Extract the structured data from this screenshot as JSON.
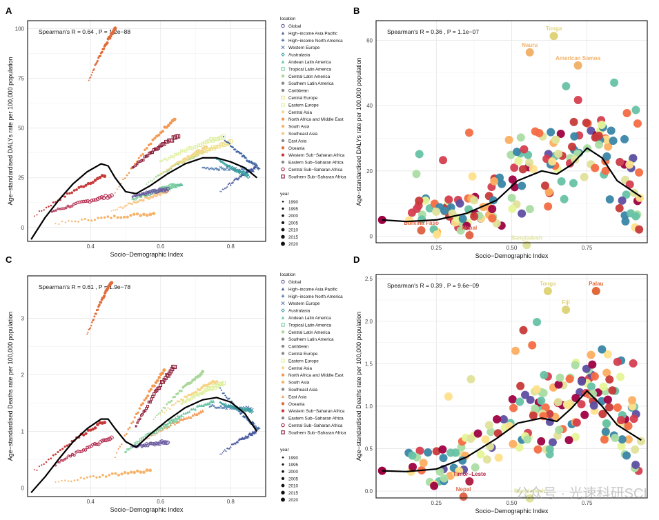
{
  "figure": {
    "watermark": "公众号 · 光速科研SCI"
  },
  "chart_data": [
    {
      "panel": "A",
      "type": "scatter",
      "annotation": "Spearman's R = 0.64 , P = 1.2e−88",
      "xlabel": "Socio−Demographic Index",
      "ylabel": "Age−standardised DALYs rate per 100,000 population",
      "xlim": [
        0.22,
        0.9
      ],
      "ylim": [
        -7,
        104
      ],
      "xticks": [
        0.4,
        0.6,
        0.8
      ],
      "xtick_labels": [
        "0.4",
        "0.6",
        "0.8"
      ],
      "yticks": [
        0,
        25,
        50,
        75,
        100
      ],
      "ytick_labels": [
        "0",
        "25",
        "50",
        "75",
        "100"
      ],
      "grid": true,
      "legend_location_title": "location",
      "legend_year_title": "year",
      "locations": [
        "Global",
        "High−income Asia Pacific",
        "High−income North America",
        "Western Europe",
        "Australasia",
        "Andean Latin America",
        "Tropical Latin America",
        "Central Latin America",
        "Southern Latin America",
        "Caribbean",
        "Central Europe",
        "Eastern Europe",
        "Central Asia",
        "North Africa and Middle East",
        "South Asia",
        "Southeast Asia",
        "East Asia",
        "Oceania",
        "Western Sub−Saharan Africa",
        "Eastern Sub−Saharan Africa",
        "Central Sub−Saharan Africa",
        "Southern Sub−Saharan Africa"
      ],
      "years": [
        "1990",
        "1995",
        "2000",
        "2005",
        "2010",
        "2015",
        "2020"
      ],
      "series": [
        {
          "name": "Oceania",
          "color": "#e26a3a",
          "shape": "dot",
          "x0": 0.395,
          "y0": 74,
          "x1": 0.47,
          "y1": 100
        },
        {
          "name": "Western Sub−Saharan Africa",
          "color": "#c83a3a",
          "shape": "dot",
          "x0": 0.24,
          "y0": 6,
          "x1": 0.44,
          "y1": 26
        },
        {
          "name": "Central Sub−Saharan Africa",
          "color": "#b0264a",
          "shape": "ring",
          "x0": 0.29,
          "y0": 8,
          "x1": 0.46,
          "y1": 16
        },
        {
          "name": "South Asia",
          "color": "#f6b36a",
          "shape": "dot",
          "x0": 0.3,
          "y0": 2,
          "x1": 0.58,
          "y1": 7
        },
        {
          "name": "North Africa and Middle East",
          "color": "#f29a52",
          "shape": "dot",
          "x0": 0.47,
          "y0": 18,
          "x1": 0.64,
          "y1": 55
        },
        {
          "name": "Southern Sub−Saharan Africa",
          "color": "#8b1a36",
          "shape": "square",
          "x0": 0.52,
          "y0": 30,
          "x1": 0.65,
          "y1": 46
        },
        {
          "name": "Southeast Asia",
          "color": "#f9c88a",
          "shape": "dot",
          "x0": 0.46,
          "y0": 8,
          "x1": 0.62,
          "y1": 18
        },
        {
          "name": "Andean Latin America",
          "color": "#66c2a5",
          "shape": "triangle",
          "x0": 0.54,
          "y0": 16,
          "x1": 0.66,
          "y1": 22
        },
        {
          "name": "Tropical Latin America",
          "color": "#7fcfa0",
          "shape": "square",
          "x0": 0.52,
          "y0": 14,
          "x1": 0.64,
          "y1": 21
        },
        {
          "name": "Central Latin America",
          "color": "#a8d89a",
          "shape": "dot",
          "x0": 0.56,
          "y0": 22,
          "x1": 0.72,
          "y1": 38
        },
        {
          "name": "Central Asia",
          "color": "#f7d58c",
          "shape": "dot",
          "x0": 0.6,
          "y0": 27,
          "x1": 0.73,
          "y1": 40
        },
        {
          "name": "Eastern Europe",
          "color": "#dff0a0",
          "shape": "square",
          "x0": 0.6,
          "y0": 33,
          "x1": 0.78,
          "y1": 46
        },
        {
          "name": "Central Europe",
          "color": "#eee08a",
          "shape": "square",
          "x0": 0.66,
          "y0": 33,
          "x1": 0.8,
          "y1": 43
        },
        {
          "name": "Global",
          "color": "#6a5aa0",
          "shape": "ring",
          "x0": 0.52,
          "y0": 16,
          "x1": 0.62,
          "y1": 19
        },
        {
          "name": "Western Europe",
          "color": "#5a82b0",
          "shape": "cross",
          "x0": 0.72,
          "y0": 30,
          "x1": 0.86,
          "y1": 29
        },
        {
          "name": "High−income North America",
          "color": "#3a62a0",
          "shape": "plus",
          "x0": 0.78,
          "y0": 45,
          "x1": 0.88,
          "y1": 30
        },
        {
          "name": "High−income Asia Pacific",
          "color": "#4a5aa0",
          "shape": "triangle",
          "x0": 0.77,
          "y0": 18,
          "x1": 0.87,
          "y1": 30
        },
        {
          "name": "Australasia",
          "color": "#3aa0a0",
          "shape": "diamond",
          "x0": 0.76,
          "y0": 35,
          "x1": 0.85,
          "y1": 26
        }
      ],
      "smooth_x": [
        0.23,
        0.27,
        0.31,
        0.35,
        0.39,
        0.43,
        0.45,
        0.47,
        0.5,
        0.53,
        0.57,
        0.62,
        0.67,
        0.72,
        0.76,
        0.8,
        0.84,
        0.875
      ],
      "smooth_y": [
        -6,
        5,
        14,
        22,
        28,
        32,
        31,
        25,
        18,
        17,
        21,
        27,
        32,
        35,
        35,
        33,
        30,
        25
      ]
    },
    {
      "panel": "B",
      "type": "scatter",
      "annotation": "Spearman's R = 0.36 , P = 1.1e−07",
      "xlabel": "Socio−Demographic Index",
      "ylabel": "Age−standardised DALYs rate per 100,000 population",
      "xlim": [
        0.05,
        0.95
      ],
      "ylim": [
        -2,
        66
      ],
      "xticks": [
        0.25,
        0.5,
        0.75
      ],
      "xtick_labels": [
        "0.25",
        "0.50",
        "0.75"
      ],
      "yticks": [
        0,
        20,
        40,
        60
      ],
      "ytick_labels": [
        "0",
        "20",
        "40",
        "60"
      ],
      "grid": true,
      "labels": [
        {
          "text": "Tonga",
          "x": 0.64,
          "y": 63,
          "color": "#e0d47a"
        },
        {
          "text": "Nauru",
          "x": 0.56,
          "y": 58,
          "color": "#f1b26c"
        },
        {
          "text": "American Samoa",
          "x": 0.72,
          "y": 54,
          "color": "#f1b26c"
        },
        {
          "text": "Burkina Faso",
          "x": 0.2,
          "y": 3.5,
          "color": "#e0674a"
        },
        {
          "text": "Nepal",
          "x": 0.36,
          "y": 2,
          "color": "#e0674a"
        },
        {
          "text": "Bangladesh",
          "x": 0.55,
          "y": -1,
          "color": "#dfe29a"
        }
      ],
      "smooth_x": [
        0.07,
        0.15,
        0.25,
        0.35,
        0.45,
        0.52,
        0.6,
        0.65,
        0.7,
        0.75,
        0.8,
        0.85,
        0.93
      ],
      "smooth_y": [
        5,
        4.5,
        5,
        7,
        11,
        17,
        20,
        19,
        22,
        27,
        24,
        17,
        12
      ]
    },
    {
      "panel": "C",
      "type": "scatter",
      "annotation": "Spearman's R = 0.61 , P = 1.9e−78",
      "xlabel": "Socio−Demographic Index",
      "ylabel": "Age−standardised Deaths rate per 100,000 population",
      "xlim": [
        0.22,
        0.9
      ],
      "ylim": [
        -0.15,
        3.75
      ],
      "xticks": [
        0.4,
        0.6,
        0.8
      ],
      "xtick_labels": [
        "0.4",
        "0.6",
        "0.8"
      ],
      "yticks": [
        0,
        1,
        2,
        3
      ],
      "ytick_labels": [
        "0",
        "1",
        "2",
        "3"
      ],
      "grid": true,
      "legend_location_title": "location",
      "legend_year_title": "year",
      "locations": [
        "Global",
        "High−income Asia Pacific",
        "High−income North America",
        "Western Europe",
        "Australasia",
        "Andean Latin America",
        "Tropical Latin America",
        "Central Latin America",
        "Southern Latin America",
        "Caribbean",
        "Central Europe",
        "Eastern Europe",
        "Central Asia",
        "North Africa and Middle East",
        "South Asia",
        "Southeast Asia",
        "East Asia",
        "Oceania",
        "Western Sub−Saharan Africa",
        "Eastern Sub−Saharan Africa",
        "Central Sub−Saharan Africa",
        "Southern Sub−Saharan Africa"
      ],
      "years": [
        "1990",
        "1995",
        "2000",
        "2005",
        "2010",
        "2015",
        "2020"
      ],
      "series": [
        {
          "name": "Oceania",
          "color": "#e26a3a",
          "shape": "dot",
          "x0": 0.39,
          "y0": 2.7,
          "x1": 0.46,
          "y1": 3.65
        },
        {
          "name": "Western Sub−Saharan Africa",
          "color": "#c83a3a",
          "shape": "dot",
          "x0": 0.24,
          "y0": 0.3,
          "x1": 0.44,
          "y1": 1.18
        },
        {
          "name": "Central Sub−Saharan Africa",
          "color": "#b0264a",
          "shape": "ring",
          "x0": 0.3,
          "y0": 0.42,
          "x1": 0.46,
          "y1": 0.88
        },
        {
          "name": "South Asia",
          "color": "#f6b36a",
          "shape": "dot",
          "x0": 0.3,
          "y0": 0.1,
          "x1": 0.57,
          "y1": 0.31
        },
        {
          "name": "North Africa and Middle East",
          "color": "#f29a52",
          "shape": "dot",
          "x0": 0.47,
          "y0": 0.55,
          "x1": 0.61,
          "y1": 2.08
        },
        {
          "name": "Southern Sub−Saharan Africa",
          "color": "#8b1a36",
          "shape": "square",
          "x0": 0.53,
          "y0": 1.1,
          "x1": 0.64,
          "y1": 2.15
        },
        {
          "name": "Central Latin America",
          "color": "#a8d89a",
          "shape": "dot",
          "x0": 0.58,
          "y0": 1.2,
          "x1": 0.72,
          "y1": 2.05
        },
        {
          "name": "Central Asia",
          "color": "#f7d58c",
          "shape": "dot",
          "x0": 0.6,
          "y0": 1.3,
          "x1": 0.76,
          "y1": 1.9
        },
        {
          "name": "Eastern Europe",
          "color": "#dff0a0",
          "shape": "square",
          "x0": 0.66,
          "y0": 1.5,
          "x1": 0.78,
          "y1": 1.85
        },
        {
          "name": "Tropical Latin America",
          "color": "#7fcfa0",
          "shape": "square",
          "x0": 0.5,
          "y0": 0.65,
          "x1": 0.66,
          "y1": 1.25
        },
        {
          "name": "Andean Latin America",
          "color": "#66c2a5",
          "shape": "triangle",
          "x0": 0.58,
          "y0": 1.0,
          "x1": 0.75,
          "y1": 1.55
        },
        {
          "name": "East Asia",
          "color": "#f4a060",
          "shape": "triangle",
          "x0": 0.55,
          "y0": 0.85,
          "x1": 0.72,
          "y1": 1.35
        },
        {
          "name": "Global",
          "color": "#6a5aa0",
          "shape": "ring",
          "x0": 0.52,
          "y0": 0.72,
          "x1": 0.62,
          "y1": 0.82
        },
        {
          "name": "Western Europe",
          "color": "#5a82b0",
          "shape": "cross",
          "x0": 0.74,
          "y0": 1.45,
          "x1": 0.86,
          "y1": 1.4
        },
        {
          "name": "High−income North America",
          "color": "#3a62a0",
          "shape": "plus",
          "x0": 0.77,
          "y0": 1.75,
          "x1": 0.88,
          "y1": 1.05
        },
        {
          "name": "High−income Asia Pacific",
          "color": "#4a5aa0",
          "shape": "triangle",
          "x0": 0.77,
          "y0": 0.6,
          "x1": 0.87,
          "y1": 1.0
        },
        {
          "name": "Australasia",
          "color": "#3aa0a0",
          "shape": "diamond",
          "x0": 0.77,
          "y0": 1.5,
          "x1": 0.86,
          "y1": 1.35
        }
      ],
      "smooth_x": [
        0.23,
        0.27,
        0.31,
        0.35,
        0.39,
        0.43,
        0.45,
        0.47,
        0.5,
        0.53,
        0.57,
        0.62,
        0.67,
        0.72,
        0.76,
        0.8,
        0.84,
        0.875
      ],
      "smooth_y": [
        -0.08,
        0.2,
        0.52,
        0.82,
        1.05,
        1.22,
        1.22,
        1.05,
        0.82,
        0.72,
        0.95,
        1.2,
        1.42,
        1.56,
        1.6,
        1.52,
        1.32,
        1.0
      ]
    },
    {
      "panel": "D",
      "type": "scatter",
      "annotation": "Spearman's R = 0.39 , P = 9.6e−09",
      "xlabel": "Socio−Demographic Index",
      "ylabel": "Age−standardised Deaths rate per 100,000 population",
      "xlim": [
        0.05,
        0.95
      ],
      "ylim": [
        -0.08,
        2.55
      ],
      "xticks": [
        0.25,
        0.5,
        0.75
      ],
      "xtick_labels": [
        "0.25",
        "0.50",
        "0.75"
      ],
      "yticks": [
        0.0,
        0.5,
        1.0,
        1.5,
        2.0,
        2.5
      ],
      "ytick_labels": [
        "0.0",
        "0.5",
        "1.0",
        "1.5",
        "2.0",
        "2.5"
      ],
      "grid": true,
      "labels": [
        {
          "text": "Tonga",
          "x": 0.62,
          "y": 2.42,
          "color": "#e0d47a"
        },
        {
          "text": "Palau",
          "x": 0.78,
          "y": 2.42,
          "color": "#e26a3a"
        },
        {
          "text": "Fiji",
          "x": 0.68,
          "y": 2.2,
          "color": "#e0d47a"
        },
        {
          "text": "Timor−Leste",
          "x": 0.36,
          "y": 0.18,
          "color": "#b0264a"
        },
        {
          "text": "Nepal",
          "x": 0.34,
          "y": 0.0,
          "color": "#e0674a"
        },
        {
          "text": "Bangladesh",
          "x": 0.56,
          "y": -0.02,
          "color": "#dfe29a"
        }
      ],
      "smooth_x": [
        0.07,
        0.15,
        0.25,
        0.35,
        0.45,
        0.52,
        0.6,
        0.65,
        0.7,
        0.75,
        0.8,
        0.85,
        0.93
      ],
      "smooth_y": [
        0.24,
        0.23,
        0.26,
        0.4,
        0.62,
        0.8,
        0.86,
        0.82,
        0.98,
        1.18,
        1.0,
        0.78,
        0.6
      ]
    }
  ]
}
